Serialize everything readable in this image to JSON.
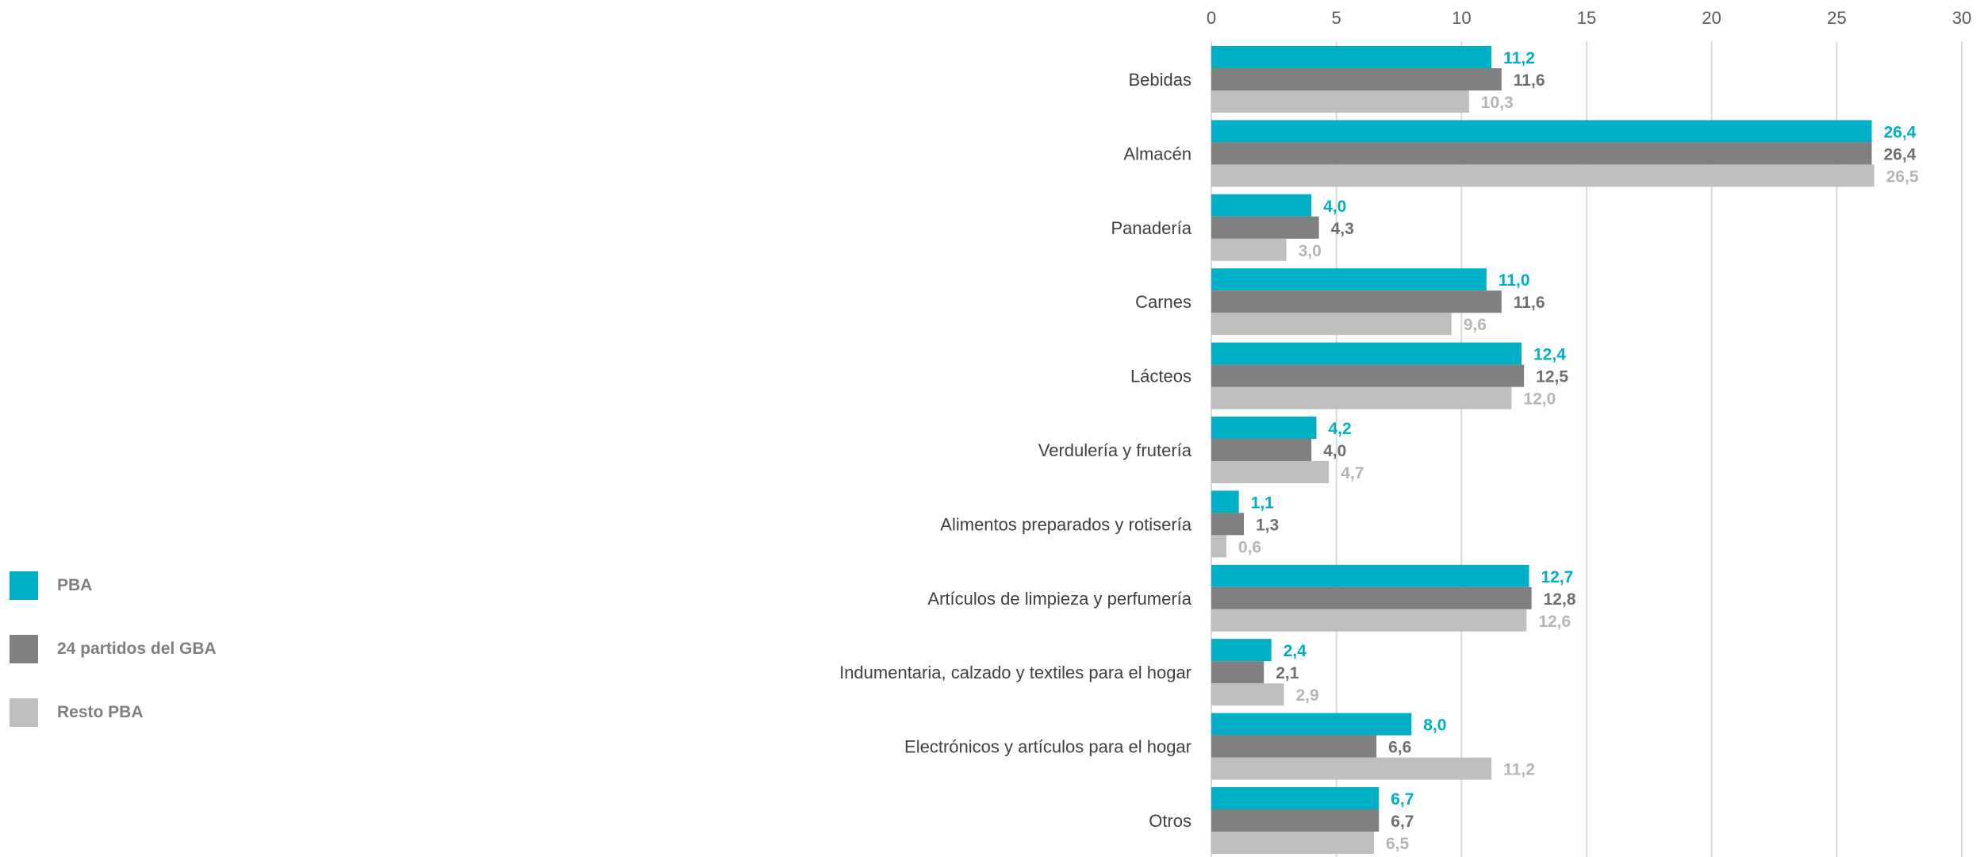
{
  "chart_data": {
    "type": "bar",
    "orientation": "horizontal",
    "categories": [
      "Bebidas",
      "Almacén",
      "Panadería",
      "Carnes",
      "Lácteos",
      "Verdulería y frutería",
      "Alimentos preparados y rotisería",
      "Artículos de limpieza y perfumería",
      "Indumentaria, calzado y textiles para el hogar",
      "Electrónicos y artículos para el hogar",
      "Otros"
    ],
    "series": [
      {
        "name": "PBA",
        "color": "#00afc3",
        "values": [
          11.2,
          26.4,
          4.0,
          11.0,
          12.4,
          4.2,
          1.1,
          12.7,
          2.4,
          8.0,
          6.7
        ],
        "labels": [
          "11,2",
          "26,4",
          "4,0",
          "11,0",
          "12,4",
          "4,2",
          "1,1",
          "12,7",
          "2,4",
          "8,0",
          "6,7"
        ]
      },
      {
        "name": "24 partidos del GBA",
        "color": "#808080",
        "values": [
          11.6,
          26.4,
          4.3,
          11.6,
          12.5,
          4.0,
          1.3,
          12.8,
          2.1,
          6.6,
          6.7
        ],
        "labels": [
          "11,6",
          "26,4",
          "4,3",
          "11,6",
          "12,5",
          "4,0",
          "1,3",
          "12,8",
          "2,1",
          "6,6",
          "6,7"
        ]
      },
      {
        "name": "Resto PBA",
        "color": "#bfbfbf",
        "values": [
          10.3,
          26.5,
          3.0,
          9.6,
          12.0,
          4.7,
          0.6,
          12.6,
          2.9,
          11.2,
          6.5
        ],
        "labels": [
          "10,3",
          "26,5",
          "3,0",
          "9,6",
          "12,0",
          "4,7",
          "0,6",
          "12,6",
          "2,9",
          "11,2",
          "6,5"
        ]
      }
    ],
    "xlim": [
      0,
      30
    ],
    "xticks": [
      "0",
      "5",
      "10",
      "15",
      "20",
      "25",
      "30"
    ],
    "axis_position": "top",
    "grid": "vertical",
    "legend_position": "left",
    "title": "",
    "xlabel": "",
    "ylabel": ""
  }
}
